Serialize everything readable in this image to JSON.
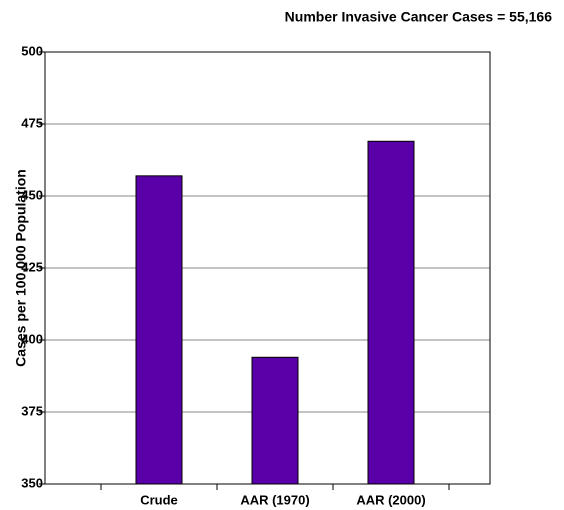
{
  "chart_data": {
    "type": "bar",
    "title": "Number Invasive Cancer Cases = 55,166",
    "y_label": "Cases per 100,000 Population",
    "categories": [
      "Crude",
      "AAR (1970)",
      "AAR (2000)"
    ],
    "values": [
      457,
      394,
      469
    ],
    "color": "#5a00a8",
    "ylim": [
      350,
      500
    ],
    "yticks": [
      350,
      375,
      400,
      425,
      450,
      475,
      500
    ],
    "grid": true
  }
}
